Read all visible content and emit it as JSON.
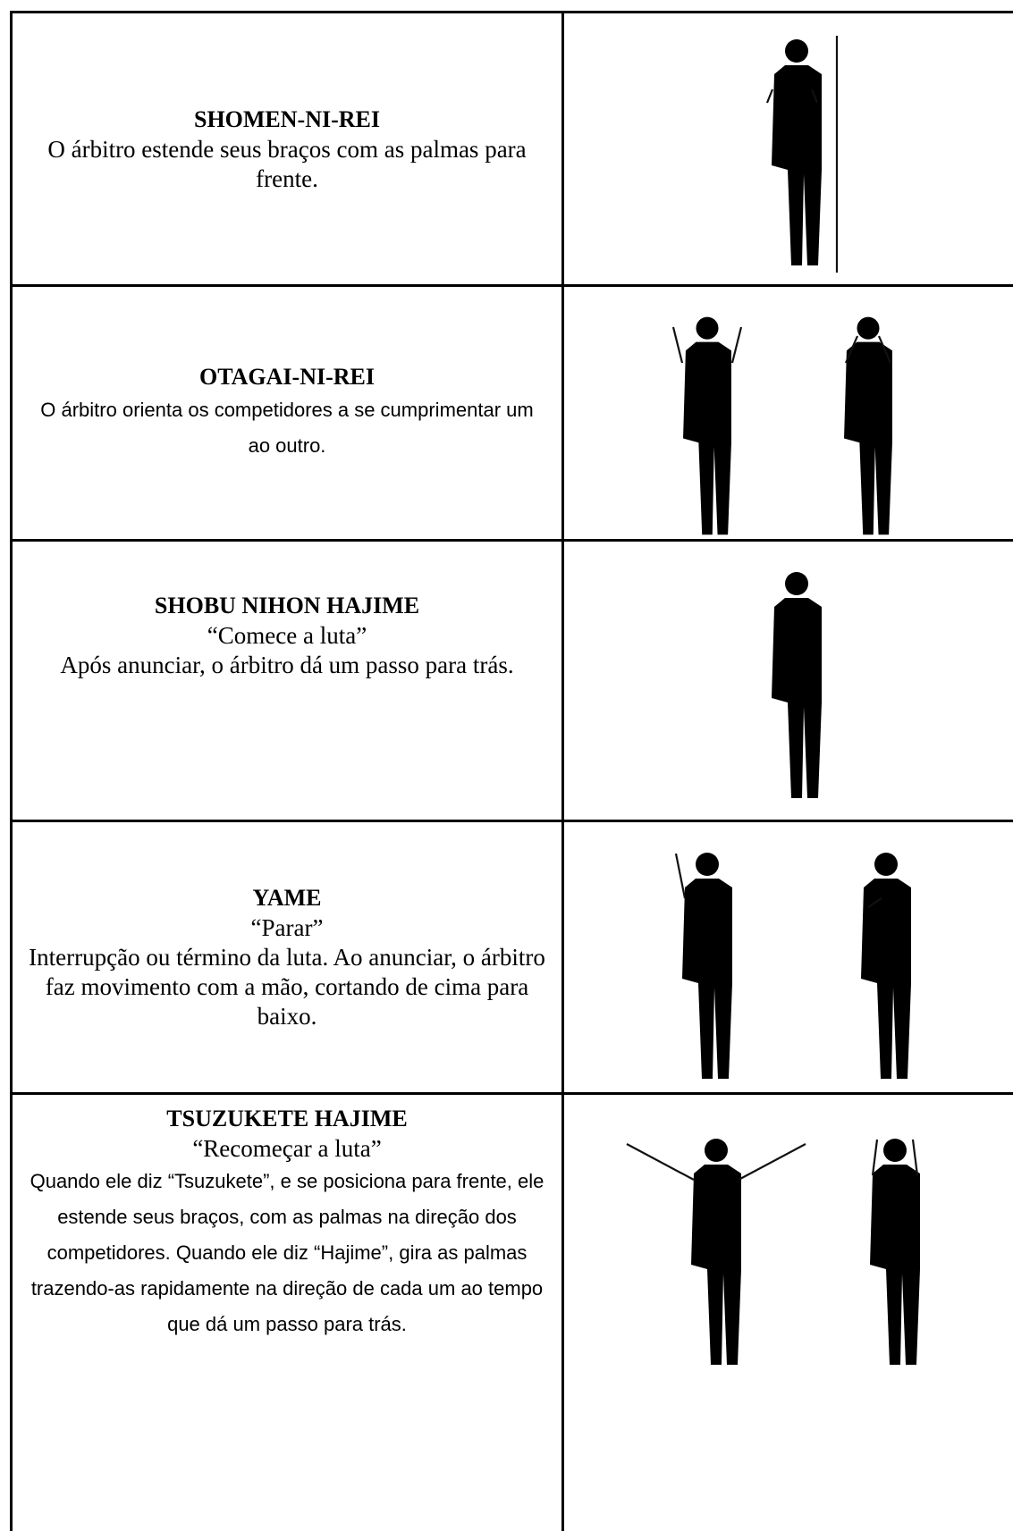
{
  "rows": [
    {
      "title": "SHOMEN-NI-REI",
      "description": "O árbitro estende seus braços com as palmas para frente."
    },
    {
      "title": "OTAGAI-NI-REI",
      "description": "O árbitro orienta os competidores a se cumprimentar um ao outro."
    },
    {
      "title": "SHOBU NIHON HAJIME",
      "quote": "“Comece a luta”",
      "description": "Após anunciar, o árbitro dá um passo para trás."
    },
    {
      "title": "YAME",
      "quote": "“Parar”",
      "description": "Interrupção ou término da luta. Ao anunciar, o árbitro faz movimento com a mão, cortando de cima para baixo."
    },
    {
      "title": "TSUZUKETE HAJIME",
      "quote": "“Recomeçar a luta”",
      "description": "Quando ele diz “Tsuzukete”, e se posiciona para frente, ele estende seus braços, com as palmas na direção dos competidores. Quando ele diz “Hajime”, gira as palmas trazendo-as rapidamente na direção de cada um ao tempo que dá um passo para trás."
    }
  ]
}
